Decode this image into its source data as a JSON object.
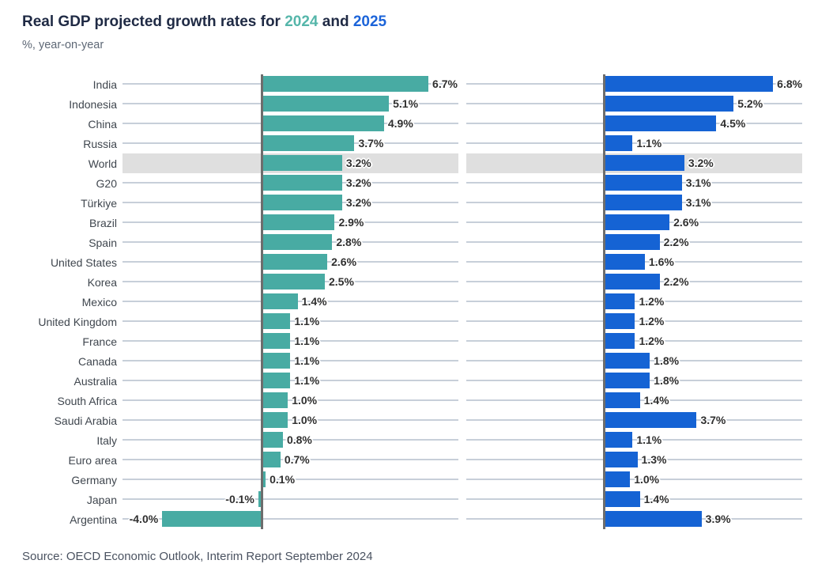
{
  "header": {
    "title_prefix": "Real GDP projected growth rates for ",
    "title_year_2024": "2024",
    "title_middle": " and ",
    "title_year_2025": "2025",
    "subtitle": "%, year-on-year"
  },
  "footer": {
    "source": "Source: OECD Economic Outlook, Interim Report September 2024"
  },
  "colors": {
    "bar_2024": "#48aba3",
    "bar_2025": "#1563d4",
    "title_2024": "#55b6aa",
    "title_2025": "#1c64d9",
    "highlight_band": "#dfdfdf",
    "gridline": "#c7cfd9",
    "axis": "#6d6d6d"
  },
  "chart_data": {
    "type": "bar",
    "orientation": "horizontal",
    "title": "Real GDP projected growth rates for 2024 and 2025",
    "subtitle": "%, year-on-year",
    "value_format": "one-decimal-percent",
    "highlight_category": "World",
    "grid": true,
    "legend_position": "in-title",
    "xlim": [
      -5.6,
      8.1
    ],
    "categories": [
      "India",
      "Indonesia",
      "China",
      "Russia",
      "World",
      "G20",
      "Türkiye",
      "Brazil",
      "Spain",
      "United States",
      "Korea",
      "Mexico",
      "United Kingdom",
      "France",
      "Canada",
      "Australia",
      "South Africa",
      "Saudi Arabia",
      "Italy",
      "Euro area",
      "Germany",
      "Japan",
      "Argentina"
    ],
    "series": [
      {
        "name": "2024",
        "color_key": "bar_2024",
        "values": [
          6.7,
          5.1,
          4.9,
          3.7,
          3.2,
          3.2,
          3.2,
          2.9,
          2.8,
          2.6,
          2.5,
          1.4,
          1.1,
          1.1,
          1.1,
          1.1,
          1.0,
          1.0,
          0.8,
          0.7,
          0.1,
          -0.1,
          -4.0
        ]
      },
      {
        "name": "2025",
        "color_key": "bar_2025",
        "values": [
          6.8,
          5.2,
          4.5,
          1.1,
          3.2,
          3.1,
          3.1,
          2.6,
          2.2,
          1.6,
          2.2,
          1.2,
          1.2,
          1.2,
          1.8,
          1.8,
          1.4,
          3.7,
          1.1,
          1.3,
          1.0,
          1.4,
          3.9
        ]
      }
    ]
  }
}
